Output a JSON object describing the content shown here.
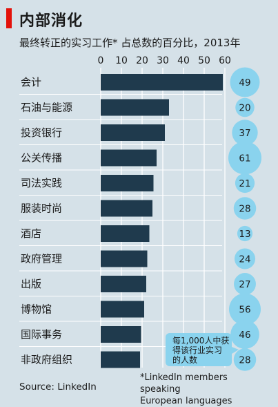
{
  "title": "内部消化",
  "subtitle": "最终转正的实习工作* 占总数的百分比，2013年",
  "source": "Source: LinkedIn",
  "footnote_lines": [
    "*LinkedIn members speaking",
    "European languages"
  ],
  "bubble_note_lines": [
    "每1,000人中获",
    "得该行业实习",
    "的人数"
  ],
  "colors": {
    "bar": "#1f3a4d",
    "bubble": "#8ad3ee",
    "accent_red": "#e3120b",
    "background": "#d5e1e8"
  },
  "chart_data": {
    "type": "bar",
    "orientation": "horizontal",
    "title": "内部消化",
    "subtitle": "最终转正的实习工作* 占总数的百分比，2013年",
    "xlim": [
      0,
      60
    ],
    "xticks": [
      "0",
      "10",
      "20",
      "30",
      "40",
      "50",
      "60"
    ],
    "grid": true,
    "categories": [
      "会计",
      "石油与能源",
      "投资银行",
      "公关传播",
      "司法实践",
      "服装时尚",
      "酒店",
      "政府管理",
      "出版",
      "博物馆",
      "国际事务",
      "非政府组织"
    ],
    "values": [
      59,
      33,
      31,
      27,
      25.5,
      25,
      23.5,
      22.5,
      22,
      21,
      19.5,
      19
    ],
    "bubble_series": {
      "values": [
        49,
        20,
        37,
        61,
        21,
        28,
        13,
        24,
        27,
        56,
        46,
        28
      ]
    }
  }
}
